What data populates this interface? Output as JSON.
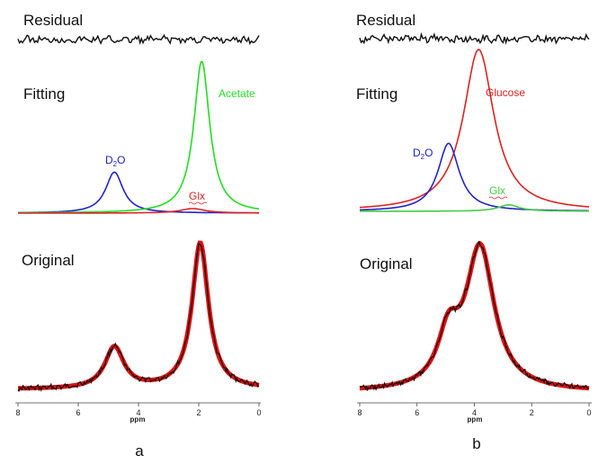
{
  "figure": {
    "panel_labels": [
      "a",
      "b"
    ]
  },
  "colors": {
    "d2o": "#2222cc",
    "metabolite": "#22dd22",
    "glx_a": "#dd2222",
    "glucose": "#dd2222",
    "glx_b": "#44cc44",
    "fit": "#e01010",
    "data": "#111111"
  },
  "chart_data": [
    {
      "type": "line",
      "panel": "a",
      "xlabel": "ppm",
      "x_reversed": true,
      "xlim": [
        8,
        0
      ],
      "x_ticks": [
        "8",
        "6",
        "4",
        "2",
        "0"
      ],
      "row_labels": {
        "residual": "Residual",
        "fitting": "Fitting",
        "original": "Original"
      },
      "fit_components": [
        {
          "name": "D2O",
          "label_main": "D",
          "label_sub": "2",
          "label_end": "O",
          "color": "d2o",
          "center": 4.8,
          "width": 0.35,
          "height": 0.27
        },
        {
          "name": "Acetate",
          "label": "Acetate",
          "color": "metabolite",
          "center": 1.9,
          "width": 0.32,
          "height": 1.0
        },
        {
          "name": "Glx",
          "label": "Glx",
          "color": "glx_a",
          "center": 2.2,
          "width": 0.5,
          "height": 0.03
        }
      ],
      "original_peaks": [
        {
          "center": 4.8,
          "width": 0.38,
          "height": 0.27
        },
        {
          "center": 1.95,
          "width": 0.33,
          "height": 0.95
        }
      ],
      "original_baseline": 0.0
    },
    {
      "type": "line",
      "panel": "b",
      "xlabel": "ppm",
      "x_reversed": true,
      "xlim": [
        8,
        0
      ],
      "x_ticks": [
        "8",
        "6",
        "4",
        "2",
        "0"
      ],
      "row_labels": {
        "residual": "Residual",
        "fitting": "Fitting",
        "original": "Original"
      },
      "fit_components": [
        {
          "name": "Glucose",
          "label": "Glucose",
          "color": "glucose",
          "center": 3.85,
          "width": 0.65,
          "height": 1.0
        },
        {
          "name": "D2O",
          "label_main": "D",
          "label_sub": "2",
          "label_end": "O",
          "color": "d2o",
          "center": 4.9,
          "width": 0.45,
          "height": 0.42
        },
        {
          "name": "Glx",
          "label": "Glx",
          "color": "glx_b",
          "center": 2.8,
          "width": 0.45,
          "height": 0.04
        }
      ],
      "original_peaks": [
        {
          "center": 3.8,
          "width": 0.6,
          "height": 0.88
        },
        {
          "center": 4.9,
          "width": 0.45,
          "height": 0.3
        }
      ],
      "original_baseline": 0.0
    }
  ]
}
